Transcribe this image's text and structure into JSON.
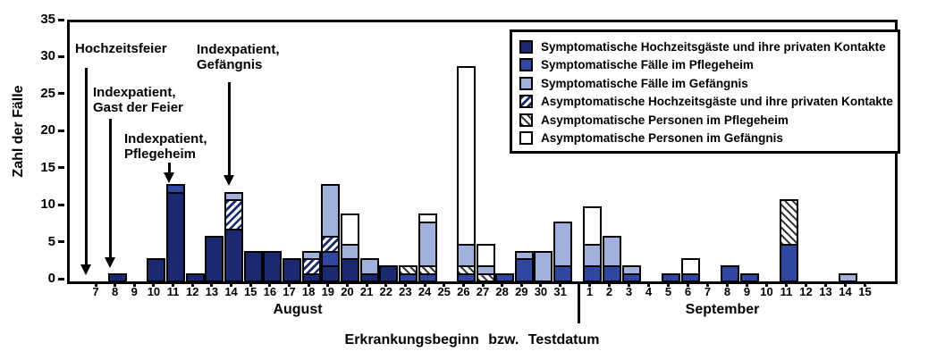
{
  "figure": {
    "background": "#ffffff",
    "bar_border_color": "#000000"
  },
  "colors": {
    "symptomatic_wedding": "#1a2970",
    "symptomatic_nursing_home": "#2f479e",
    "symptomatic_prison": "#a2b0dc",
    "asymptomatic_prison": "#ffffff",
    "hatch_dark": "#1a2970",
    "hatch_gray": "#3a3a3a"
  },
  "legend": {
    "items": [
      {
        "style": "navy",
        "label": "Symptomatische Hochzeitsgäste und ihre privaten Kontakte"
      },
      {
        "style": "medium",
        "label": "Symptomatische Fälle im Pflegeheim"
      },
      {
        "style": "light",
        "label": "Symptomatische Fälle im Gefängnis"
      },
      {
        "style": "hatch_navy",
        "label": "Asymptomatische Hochzeitsgäste und ihre privaten Kontakte"
      },
      {
        "style": "hatch_gray",
        "label": "Asymptomatische Personen im Pflegeheim"
      },
      {
        "style": "white",
        "label": "Asymptomatische Personen im Gefängnis"
      }
    ]
  },
  "annotations": [
    {
      "lines": [
        "Hochzeitsfeier"
      ],
      "arrow_points_to": "7. August"
    },
    {
      "lines": [
        "Indexpatient,",
        "Gast der Feier"
      ],
      "arrow_points_to": "8. August"
    },
    {
      "lines": [
        "Indexpatient,",
        "Pflegeheim"
      ],
      "arrow_points_to": "11. August"
    },
    {
      "lines": [
        "Indexpatient,",
        "Gefängnis"
      ],
      "arrow_points_to": "14. August"
    }
  ],
  "chart_data": {
    "type": "bar",
    "stacked": true,
    "title": "",
    "xlabel": "Erkrankungsbeginn bzw. Testdatum",
    "ylabel": "Zahl der Fälle",
    "ylim": [
      0,
      35
    ],
    "yticks": [
      0,
      5,
      10,
      15,
      20,
      25,
      30,
      35
    ],
    "grid": false,
    "legend_position": "top-right",
    "x": {
      "groups": [
        {
          "label": "August",
          "days": [
            "7",
            "8",
            "9",
            "10",
            "11",
            "12",
            "13",
            "14",
            "15",
            "16",
            "17",
            "18",
            "19",
            "20",
            "21",
            "22",
            "23",
            "24",
            "25",
            "26",
            "27",
            "28",
            "29",
            "30",
            "31"
          ]
        },
        {
          "label": "September",
          "days": [
            "1",
            "2",
            "3",
            "4",
            "5",
            "6",
            "7",
            "8",
            "9",
            "10",
            "11",
            "12",
            "13",
            "14",
            "15"
          ]
        }
      ]
    },
    "series_stack_order_note": "series listed bottom-to-top of stack",
    "series": [
      {
        "key": "wedding_symptomatic",
        "label": "Symptomatische Hochzeitsgäste und ihre privaten Kontakte",
        "style": "navy",
        "values": [
          0,
          1,
          0,
          3,
          12,
          1,
          6,
          7,
          4,
          4,
          3,
          1,
          2,
          3,
          1,
          2,
          0,
          0,
          0,
          0,
          0,
          0,
          0,
          0,
          0,
          0,
          0,
          0,
          0,
          0,
          0,
          0,
          0,
          0,
          0,
          0,
          0,
          0,
          0,
          0
        ]
      },
      {
        "key": "nursing_home_symptomatic",
        "label": "Symptomatische Fälle im Pflegeheim",
        "style": "medium",
        "values": [
          0,
          0,
          0,
          0,
          1,
          0,
          0,
          0,
          0,
          0,
          0,
          0,
          2,
          0,
          0,
          0,
          1,
          1,
          0,
          1,
          0,
          1,
          3,
          0,
          2,
          2,
          2,
          1,
          0,
          1,
          1,
          0,
          2,
          1,
          0,
          5,
          0,
          0,
          0,
          0
        ]
      },
      {
        "key": "wedding_asymptomatic",
        "label": "Asymptomatische Hochzeitsgäste und ihre privaten Kontakte",
        "style": "hatch_navy",
        "values": [
          0,
          0,
          0,
          0,
          0,
          0,
          0,
          4,
          0,
          0,
          0,
          2,
          2,
          0,
          0,
          0,
          0,
          0,
          0,
          0,
          0,
          0,
          0,
          0,
          0,
          0,
          0,
          0,
          0,
          0,
          0,
          0,
          0,
          0,
          0,
          0,
          0,
          0,
          0,
          0
        ]
      },
      {
        "key": "nursing_home_asymptomatic",
        "label": "Asymptomatische Personen im Pflegeheim",
        "style": "hatch_gray",
        "values": [
          0,
          0,
          0,
          0,
          0,
          0,
          0,
          0,
          0,
          0,
          0,
          0,
          0,
          0,
          0,
          0,
          1,
          1,
          0,
          1,
          1,
          0,
          0,
          0,
          0,
          0,
          0,
          0,
          0,
          0,
          0,
          0,
          0,
          0,
          0,
          6,
          0,
          0,
          0,
          0
        ]
      },
      {
        "key": "prison_symptomatic",
        "label": "Symptomatische Fälle im Gefängnis",
        "style": "light",
        "values": [
          0,
          0,
          0,
          0,
          0,
          0,
          0,
          1,
          0,
          0,
          0,
          1,
          7,
          2,
          2,
          0,
          0,
          6,
          0,
          3,
          1,
          0,
          1,
          4,
          6,
          3,
          4,
          1,
          0,
          0,
          0,
          0,
          0,
          0,
          0,
          0,
          0,
          0,
          1,
          0
        ]
      },
      {
        "key": "prison_asymptomatic",
        "label": "Asymptomatische Personen im Gefängnis",
        "style": "white",
        "values": [
          0,
          0,
          0,
          0,
          0,
          0,
          0,
          0,
          0,
          0,
          0,
          0,
          0,
          4,
          0,
          0,
          0,
          1,
          0,
          24,
          3,
          0,
          0,
          0,
          0,
          5,
          0,
          0,
          0,
          0,
          2,
          0,
          0,
          0,
          0,
          0,
          0,
          0,
          0,
          0
        ]
      }
    ]
  }
}
